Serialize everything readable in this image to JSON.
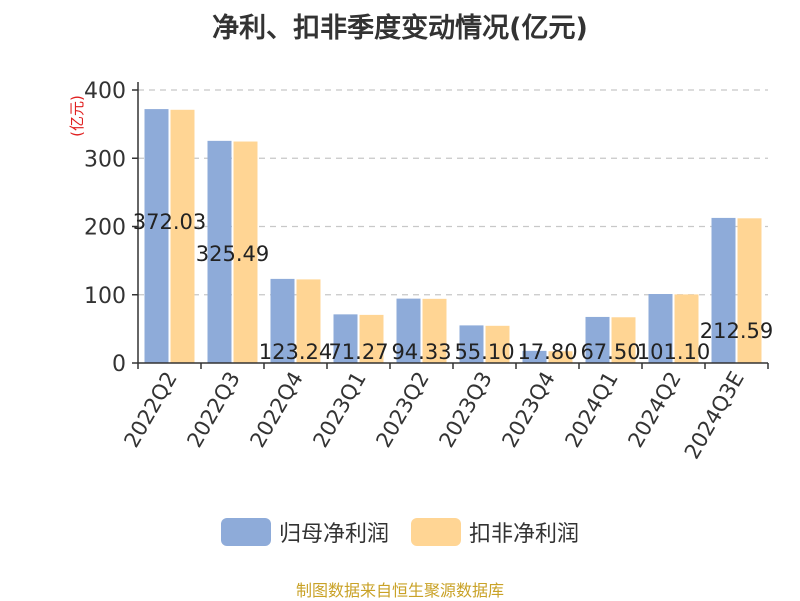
{
  "chart_data": {
    "type": "bar",
    "title": "净利、扣非季度变动情况(亿元)",
    "ylabel": "(亿元)",
    "xlabel": "",
    "ylim": [
      0,
      400
    ],
    "yticks": [
      0,
      100,
      200,
      300,
      400
    ],
    "grid": true,
    "legend": "bottom",
    "categories": [
      "2022Q2",
      "2022Q3",
      "2022Q4",
      "2023Q1",
      "2023Q2",
      "2023Q3",
      "2023Q4",
      "2024Q1",
      "2024Q2",
      "2024Q3E"
    ],
    "series": [
      {
        "name": "归母净利润",
        "color": "#8eabd9",
        "values": [
          372.03,
          325.49,
          123.24,
          71.27,
          94.33,
          55.1,
          17.8,
          67.5,
          101.1,
          212.59
        ]
      },
      {
        "name": "扣非净利润",
        "color": "#ffd594",
        "values": [
          371.0,
          324.5,
          122.5,
          70.5,
          94.0,
          54.5,
          17.2,
          67.0,
          100.5,
          212.0
        ]
      }
    ],
    "data_labels": [
      "372.03",
      "325.49",
      "123.24",
      "71.27",
      "94.33",
      "55.10",
      "17.80",
      "67.50",
      "101.10",
      "212.59"
    ]
  },
  "source": "制图数据来自恒生聚源数据库"
}
